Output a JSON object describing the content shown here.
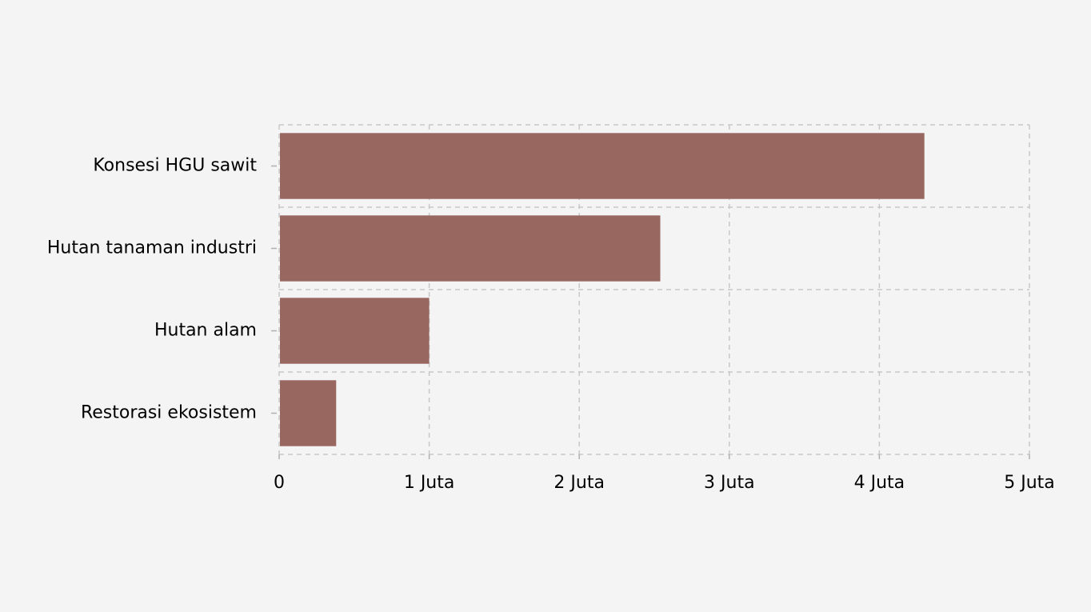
{
  "chart_data": {
    "type": "bar",
    "orientation": "horizontal",
    "categories": [
      "Konsesi HGU sawit",
      "Hutan tanaman industri",
      "Hutan alam",
      "Restorasi ekosistem"
    ],
    "values": [
      4300000,
      2540000,
      1000000,
      380000
    ],
    "xlim": [
      0,
      5000000
    ],
    "xticks": [
      0,
      1000000,
      2000000,
      3000000,
      4000000,
      5000000
    ],
    "xtick_labels": [
      "0",
      "1 Juta",
      "2 Juta",
      "3 Juta",
      "4 Juta",
      "5 Juta"
    ],
    "title": "",
    "xlabel": "",
    "ylabel": "",
    "grid": true,
    "bar_color": "#98675f",
    "grid_color": "#c8c8c8"
  }
}
